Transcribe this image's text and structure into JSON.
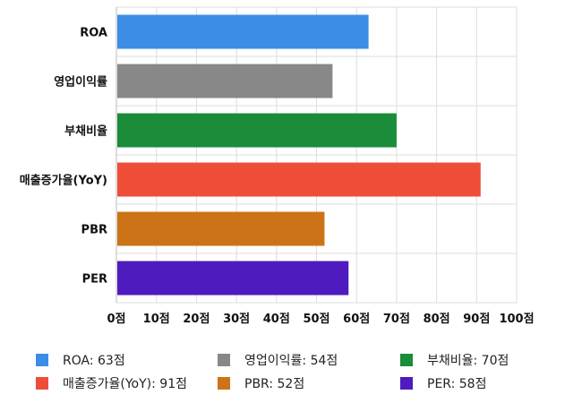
{
  "chart_data": {
    "type": "bar",
    "orientation": "horizontal",
    "categories": [
      "ROA",
      "영업이익률",
      "부채비율",
      "매출증가율(YoY)",
      "PBR",
      "PER"
    ],
    "values": [
      63,
      54,
      70,
      91,
      52,
      58
    ],
    "colors": [
      "#3b8de6",
      "#888888",
      "#1a8c3a",
      "#ee4e38",
      "#cc7317",
      "#4e1bbf"
    ],
    "xlim": [
      0,
      100
    ],
    "x_ticks": [
      0,
      10,
      20,
      30,
      40,
      50,
      60,
      70,
      80,
      90,
      100
    ],
    "tick_suffix": "점",
    "grid": true,
    "legend_position": "bottom"
  },
  "legend": [
    {
      "label": "ROA: 63점",
      "color": "#3b8de6"
    },
    {
      "label": "영업이익률: 54점",
      "color": "#888888"
    },
    {
      "label": "부채비율: 70점",
      "color": "#1a8c3a"
    },
    {
      "label": "매출증가율(YoY): 91점",
      "color": "#ee4e38"
    },
    {
      "label": "PBR: 52점",
      "color": "#cc7317"
    },
    {
      "label": "PER: 58점",
      "color": "#4e1bbf"
    }
  ]
}
